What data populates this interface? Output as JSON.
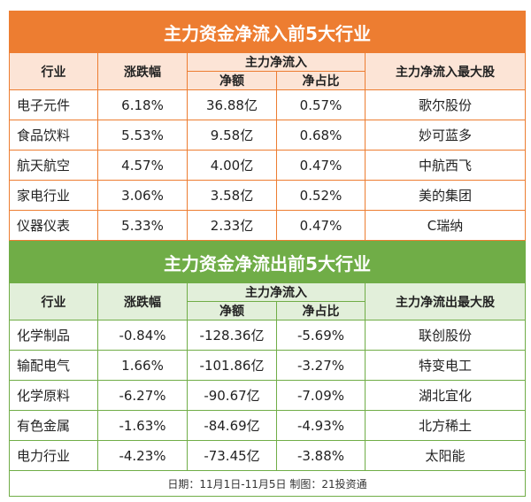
{
  "inflow": {
    "title": "主力资金净流入前5大行业",
    "headers": {
      "industry": "行业",
      "change": "涨跌幅",
      "group": "主力净流入",
      "amount": "净额",
      "ratio": "净占比",
      "top": "主力净流入最大股"
    },
    "rows": [
      [
        "电子元件",
        "6.18%",
        "36.88亿",
        "0.57%",
        "歌尔股份"
      ],
      [
        "食品饮料",
        "5.53%",
        "9.58亿",
        "0.68%",
        "妙可蓝多"
      ],
      [
        "航天航空",
        "4.57%",
        "4.00亿",
        "0.47%",
        "中航西飞"
      ],
      [
        "家电行业",
        "3.06%",
        "3.58亿",
        "0.52%",
        "美的集团"
      ],
      [
        "仪器仪表",
        "5.33%",
        "2.33亿",
        "0.47%",
        "C瑞纳"
      ]
    ]
  },
  "outflow": {
    "title": "主力资金净流出前5大行业",
    "headers": {
      "industry": "行业",
      "change": "涨跌幅",
      "group": "主力净流入",
      "amount": "净额",
      "ratio": "净占比",
      "top": "主力净流出最大股"
    },
    "rows": [
      [
        "化学制品",
        "-0.84%",
        "-128.36亿",
        "-5.69%",
        "联创股份"
      ],
      [
        "输配电气",
        "1.66%",
        "-101.86亿",
        "-3.27%",
        "特变电工"
      ],
      [
        "化学原料",
        "-6.27%",
        "-90.67亿",
        "-7.09%",
        "湖北宜化"
      ],
      [
        "有色金属",
        "-1.63%",
        "-84.69亿",
        "-4.93%",
        "北方稀土"
      ],
      [
        "电力行业",
        "-4.23%",
        "-73.45亿",
        "-3.88%",
        "太阳能"
      ]
    ]
  },
  "footer": "日期：11月1日-11月5日 制图：21投资通",
  "colors": {
    "orange": "#ED7D31",
    "green": "#70AD47"
  }
}
